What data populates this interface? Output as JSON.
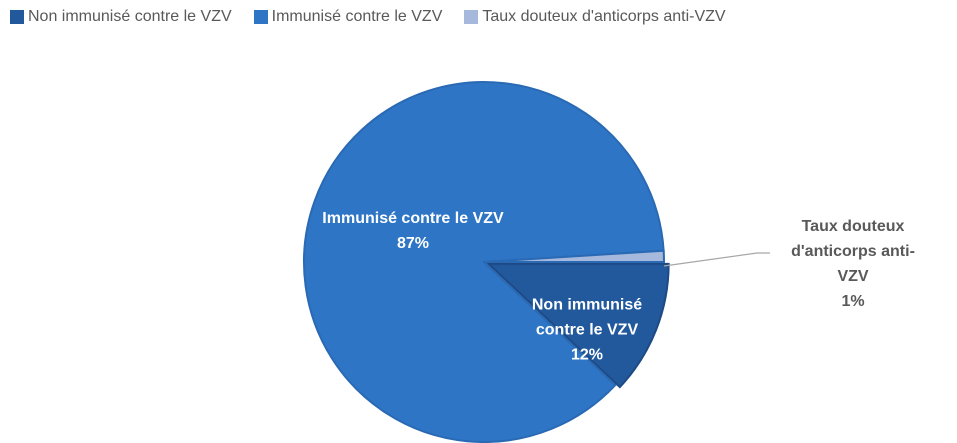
{
  "chart_data": {
    "type": "pie",
    "categories": [
      "Non immunisé contre le VZV",
      "Immunisé contre le VZV",
      "Taux douteux d'anticorps anti-VZV"
    ],
    "values": [
      12,
      87,
      1
    ],
    "value_labels": [
      "12%",
      "87%",
      "1%"
    ],
    "colors": [
      "#22589c",
      "#2e75c6",
      "#a6b8dc"
    ],
    "legend": "top"
  }
}
